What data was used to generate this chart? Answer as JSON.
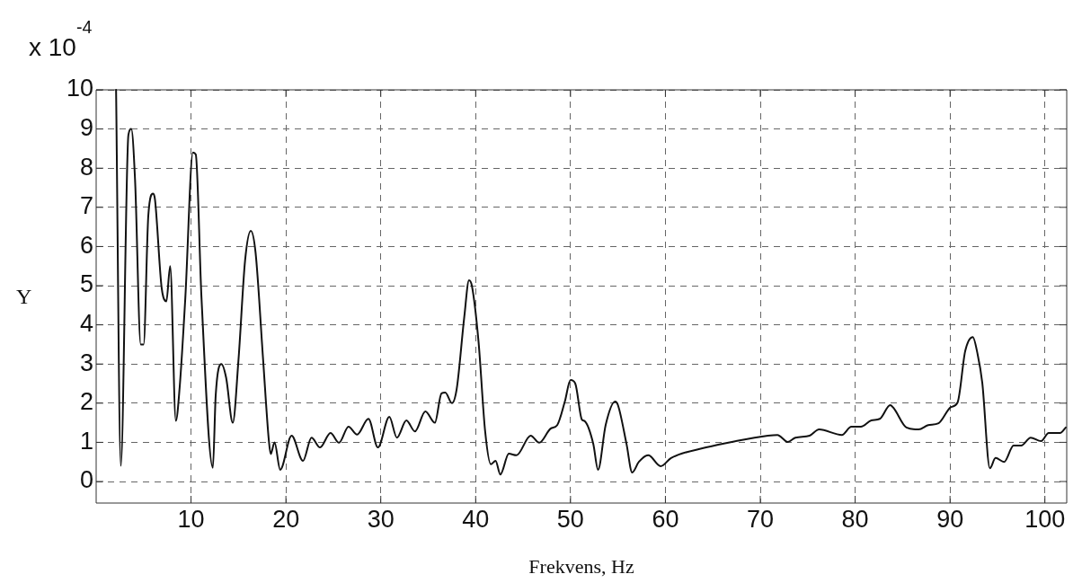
{
  "chart_data": {
    "type": "line",
    "xlabel": "Frekvens, Hz",
    "ylabel": "Y",
    "annotations": [
      "x 10$^{-4}$"
    ],
    "x": [
      2.1,
      2.6,
      3.4,
      3.7,
      4.1,
      4.7,
      5.0,
      5.5,
      6.0,
      6.2,
      6.9,
      7.4,
      7.8,
      8.4,
      8.8,
      9.4,
      10.2,
      10.5,
      11.1,
      12.3,
      12.6,
      13.2,
      13.7,
      14.4,
      15.0,
      15.7,
      16.3,
      16.8,
      17.6,
      18.2,
      18.4,
      18.8,
      19.4,
      20.6,
      21.8,
      22.7,
      23.6,
      24.7,
      25.6,
      26.6,
      27.5,
      28.7,
      29.7,
      30.9,
      31.7,
      32.7,
      33.6,
      34.7,
      35.7,
      36.4,
      36.8,
      37.5,
      38.0,
      38.8,
      39.3,
      39.6,
      40.3,
      41.0,
      41.6,
      42.1,
      42.6,
      43.5,
      44.3,
      45.8,
      46.7,
      47.9,
      48.6,
      49.4,
      50.0,
      50.5,
      51.2,
      51.5,
      52.4,
      52.9,
      53.7,
      54.7,
      55.0,
      55.9,
      56.5,
      57.2,
      58.2,
      59.5,
      60.6,
      64.3,
      67.4,
      70.8,
      71.8,
      72.9,
      73.7,
      75.2,
      76.2,
      78.6,
      79.6,
      80.6,
      81.7,
      82.6,
      83.7,
      84.1,
      85.4,
      86.7,
      87.7,
      88.8,
      90.1,
      90.8,
      91.6,
      92.4,
      92.9,
      93.4,
      94.2,
      94.8,
      95.7,
      96.7,
      97.5,
      98.5,
      99.6,
      100.4,
      101.6,
      102.2
    ],
    "series": [
      {
        "color": "#111111",
        "values": [
          10,
          0.4,
          8.85,
          9.0,
          7.7,
          3.5,
          3.5,
          6.8,
          7.35,
          7.2,
          4.95,
          4.6,
          5.5,
          1.55,
          2.4,
          4.7,
          8.4,
          8.35,
          4.7,
          0.35,
          2.2,
          3.0,
          2.65,
          1.5,
          3.1,
          5.65,
          6.4,
          5.85,
          3.1,
          1.05,
          0.7,
          1.0,
          0.3,
          1.17,
          0.53,
          1.12,
          0.87,
          1.24,
          0.99,
          1.4,
          1.2,
          1.6,
          0.87,
          1.65,
          1.12,
          1.56,
          1.28,
          1.79,
          1.5,
          2.25,
          2.27,
          2.0,
          2.36,
          4.2,
          5.14,
          5.0,
          3.58,
          1.28,
          0.44,
          0.53,
          0.18,
          0.71,
          0.67,
          1.17,
          0.99,
          1.35,
          1.44,
          2.04,
          2.59,
          2.5,
          1.58,
          1.54,
          0.96,
          0.3,
          1.44,
          2.04,
          1.95,
          0.96,
          0.23,
          0.5,
          0.67,
          0.39,
          0.6,
          0.87,
          1.03,
          1.17,
          1.19,
          1.01,
          1.12,
          1.17,
          1.33,
          1.19,
          1.4,
          1.4,
          1.56,
          1.6,
          1.95,
          1.86,
          1.38,
          1.33,
          1.44,
          1.49,
          1.9,
          2.02,
          3.33,
          3.69,
          3.26,
          2.52,
          0.34,
          0.6,
          0.5,
          0.92,
          0.92,
          1.12,
          1.03,
          1.24,
          1.24,
          1.38
        ]
      }
    ],
    "xlim": [
      0,
      102.3
    ],
    "xticks": [
      10,
      20,
      30,
      40,
      50,
      60,
      70,
      80,
      90,
      100
    ],
    "ylim": [
      -0.55,
      10
    ],
    "yticks": [
      0,
      1,
      2,
      3,
      4,
      5,
      6,
      7,
      8,
      9,
      10
    ],
    "grid": true,
    "legend": false,
    "marker": "none",
    "line_style": "solid"
  }
}
